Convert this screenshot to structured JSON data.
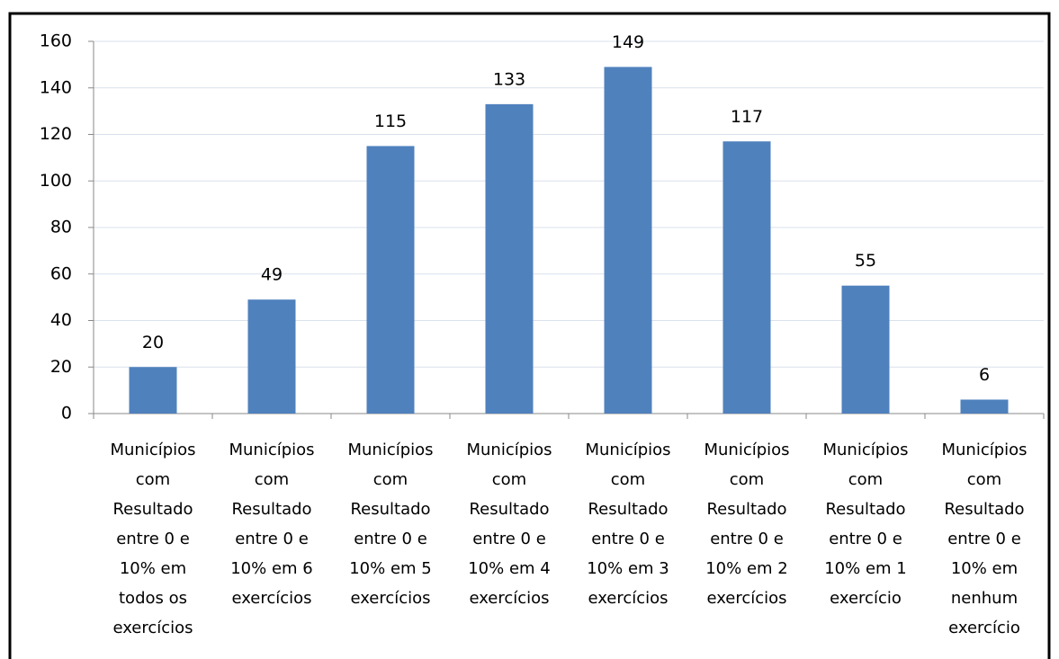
{
  "chart_data": {
    "type": "bar",
    "categories": [
      "Municípios com Resultado entre 0 e 10% em todos os exercícios",
      "Municípios com Resultado entre 0 e 10% em 6 exercícios",
      "Municípios com Resultado entre 0 e 10% em 5 exercícios",
      "Municípios com Resultado entre 0 e 10% em 4 exercícios",
      "Municípios com Resultado entre 0 e 10% em 3 exercícios",
      "Municípios com Resultado entre 0 e 10% em 2 exercícios",
      "Municípios com Resultado entre 0 e 10% em 1 exercício",
      "Municípios com Resultado entre 0 e 10% em nenhum exercício"
    ],
    "values": [
      20,
      49,
      115,
      133,
      149,
      117,
      55,
      6
    ],
    "color": "#4f81bd",
    "ylim": [
      0,
      160
    ],
    "yticks": [
      0,
      20,
      40,
      60,
      80,
      100,
      120,
      140,
      160
    ],
    "grid": true
  }
}
